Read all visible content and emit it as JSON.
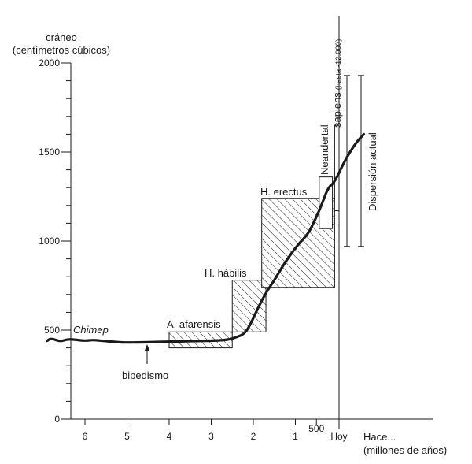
{
  "chart_data": {
    "type": "line",
    "title": "",
    "ylabel_line1": "cráneo",
    "ylabel_line2": "(centímetros cúbicos)",
    "xlabel_line1": "Hace...",
    "xlabel_line2": "(millones de años)",
    "ylim": [
      0,
      2000
    ],
    "y_ticks": [
      0,
      500,
      1000,
      1500,
      2000
    ],
    "x_ticks": [
      "6",
      "5",
      "4",
      "3",
      "2",
      "1",
      "500",
      "Hoy"
    ],
    "series": [
      {
        "values_mya_cc": [
          [
            6.9,
            440
          ],
          [
            6.8,
            455
          ],
          [
            6.6,
            435
          ],
          [
            6.4,
            450
          ],
          [
            6.2,
            445
          ],
          [
            6.0,
            440
          ],
          [
            5.8,
            445
          ],
          [
            5.6,
            440
          ],
          [
            5.2,
            432
          ],
          [
            5.0,
            430
          ],
          [
            4.5,
            432
          ],
          [
            4.0,
            435
          ],
          [
            3.5,
            438
          ],
          [
            3.0,
            440
          ],
          [
            2.6,
            445
          ],
          [
            2.4,
            460
          ],
          [
            2.2,
            480
          ],
          [
            2.05,
            540
          ],
          [
            1.9,
            620
          ],
          [
            1.7,
            710
          ],
          [
            1.5,
            780
          ],
          [
            1.3,
            860
          ],
          [
            1.1,
            930
          ],
          [
            0.9,
            990
          ],
          [
            0.7,
            1040
          ],
          [
            0.55,
            1110
          ],
          [
            0.4,
            1200
          ],
          [
            0.25,
            1300
          ],
          [
            0.1,
            1330
          ],
          [
            -0.1,
            1450
          ],
          [
            -0.3,
            1550
          ],
          [
            -0.45,
            1600
          ]
        ]
      }
    ],
    "ranges": [
      {
        "label": "A. afarensis",
        "from_mya": 4.0,
        "to_mya": 2.5,
        "min_cc": 400,
        "max_cc": 490,
        "hatched": true
      },
      {
        "label": "H. hábilis",
        "from_mya": 2.5,
        "to_mya": 1.7,
        "min_cc": 490,
        "max_cc": 780,
        "hatched": true
      },
      {
        "label": "H. erectus",
        "from_mya": 1.8,
        "to_mya": 0.1,
        "min_cc": 740,
        "max_cc": 1240,
        "hatched": true
      },
      {
        "label": "Neandertal",
        "from_mya": 0.45,
        "to_mya": 0.15,
        "min_cc": 1070,
        "max_cc": 1360,
        "hatched": false
      },
      {
        "label_main": "sapiens",
        "label_note": "(hasta -12.000)",
        "from_mya": 0.1,
        "to_mya": 0.0,
        "min_cc": 1170,
        "max_cc": 1650,
        "hatched": false
      }
    ],
    "annotations": {
      "chimp_label": "Chimep",
      "chimp_cc": 500,
      "bipedism_label": "bipedismo",
      "bipedism_mya": 4.5,
      "modern_range_label": "Dispersión actual",
      "modern_range_cc": [
        970,
        1930
      ]
    }
  }
}
